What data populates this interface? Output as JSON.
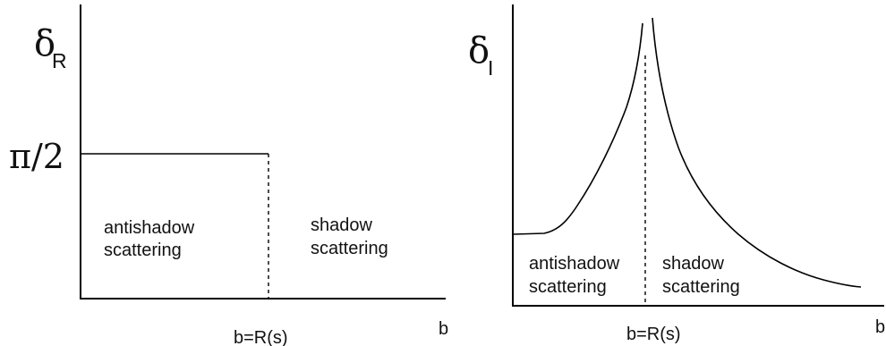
{
  "left_panel": {
    "y_symbol": "δ",
    "y_subscript": "R",
    "y_tick_label": "π/2",
    "x_label": "b",
    "x_mark_label": "b=R(s)",
    "region_left": [
      "antishadow",
      "scattering"
    ],
    "region_right": [
      "shadow",
      "scattering"
    ]
  },
  "right_panel": {
    "y_symbol": "δ",
    "y_subscript": "I",
    "x_label": "b",
    "x_mark_label": "b=R(s)",
    "region_left": [
      "antishadow",
      "scattering"
    ],
    "region_right": [
      "shadow",
      "scattering"
    ]
  }
}
